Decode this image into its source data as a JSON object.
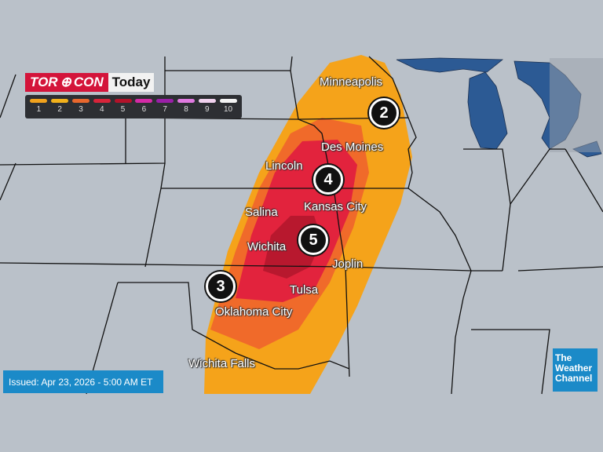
{
  "title": {
    "brand_left": "TOR",
    "brand_right": "CON",
    "period": "Today"
  },
  "legend": {
    "levels": [
      {
        "label": "1",
        "color": "#f0a21d"
      },
      {
        "label": "2",
        "color": "#f2b11b"
      },
      {
        "label": "3",
        "color": "#e8672d"
      },
      {
        "label": "4",
        "color": "#d8243a"
      },
      {
        "label": "5",
        "color": "#b3122a"
      },
      {
        "label": "6",
        "color": "#d42aa6"
      },
      {
        "label": "7",
        "color": "#9a1fa8"
      },
      {
        "label": "8",
        "color": "#e07ae0"
      },
      {
        "label": "9",
        "color": "#f1d2ee"
      },
      {
        "label": "10",
        "color": "#f4f4f4"
      }
    ]
  },
  "cities": [
    "Minneapolis",
    "Des Moines",
    "Lincoln",
    "Kansas City",
    "Salina",
    "Wichita",
    "Joplin",
    "Tulsa",
    "Oklahoma City",
    "Wichita Falls"
  ],
  "badges": [
    "2",
    "4",
    "5",
    "3"
  ],
  "colors": {
    "level2": "#f5a31a",
    "level3": "#f06a2a",
    "level4": "#e2233d",
    "level5": "#b8182e",
    "land": "#bac1c9",
    "water": "#2c5a94"
  },
  "issued": "Issued: Apr 23, 2026 - 5:00 AM ET",
  "network_logo": "The Weather Channel"
}
